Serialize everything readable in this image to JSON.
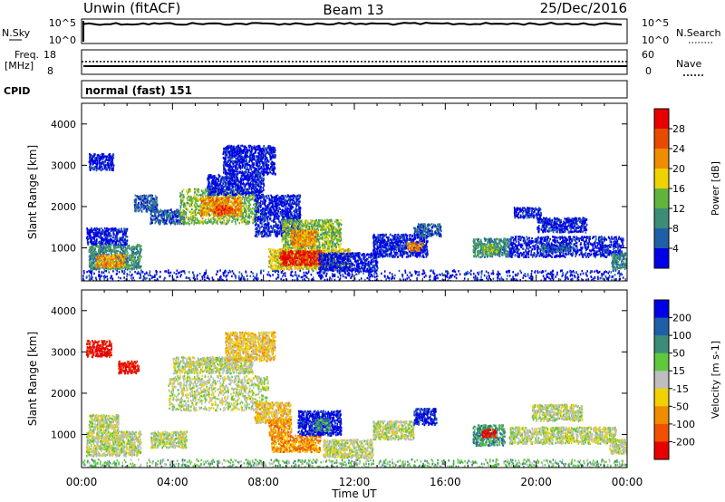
{
  "header": {
    "station": "Unwin (fitACF)",
    "beam": "Beam 13",
    "date": "25/Dec/2016"
  },
  "status_panels": {
    "nsky_label": "N.Sky",
    "nsearch_label": "N.Search",
    "noise_ticks_left": [
      "10^5",
      "10^0"
    ],
    "noise_ticks_right": [
      "10^5",
      "10^0"
    ],
    "freq_label": "Freq.",
    "freq_unit": "[MHz]",
    "freq_ticks": [
      "18",
      "8"
    ],
    "nave_label": "Nave",
    "nave_ticks": [
      "60",
      "0"
    ],
    "cpid_label": "CPID",
    "cpid_value": "normal (fast) 151"
  },
  "colors": {
    "power": [
      "#0000e6",
      "#1f5fa8",
      "#3c8c78",
      "#5fb43c",
      "#f0d200",
      "#f08c00",
      "#e64b00",
      "#e60000"
    ],
    "velocity": [
      "#0000e6",
      "#1f5fa8",
      "#3c8c78",
      "#5fc83c",
      "#bebebe",
      "#f0d200",
      "#f08c00",
      "#f05000",
      "#e60000"
    ]
  },
  "chart_data": [
    {
      "type": "heatmap",
      "name": "power",
      "ylabel": "Slant Range [km]",
      "xlabel": "",
      "y_ticks": [
        "1000",
        "2000",
        "3000",
        "4000"
      ],
      "ylim": [
        200,
        4500
      ],
      "x_ticks": [
        "00:00",
        "04:00",
        "08:00",
        "12:00",
        "16:00",
        "20:00",
        "00:00"
      ],
      "colorbar_label": "Power [dB]",
      "colorbar_ticks": [
        "4",
        "8",
        "12",
        "16",
        "20",
        "24",
        "28"
      ],
      "regions": [
        {
          "t0": 0.0,
          "t1": 24.0,
          "r0": 200,
          "r1": 480,
          "level": 1
        },
        {
          "t0": 0.3,
          "t1": 2.6,
          "r0": 500,
          "r1": 1100,
          "level": 3
        },
        {
          "t0": 0.6,
          "t1": 1.9,
          "r0": 550,
          "r1": 850,
          "level": 6
        },
        {
          "t0": 0.2,
          "t1": 2.0,
          "r0": 1100,
          "r1": 1500,
          "level": 1
        },
        {
          "t0": 0.3,
          "t1": 1.4,
          "r0": 2900,
          "r1": 3300,
          "level": 1
        },
        {
          "t0": 2.3,
          "t1": 3.3,
          "r0": 1900,
          "r1": 2300,
          "level": 2
        },
        {
          "t0": 3.0,
          "t1": 4.5,
          "r0": 1600,
          "r1": 1950,
          "level": 2
        },
        {
          "t0": 4.3,
          "t1": 7.8,
          "r0": 1600,
          "r1": 2450,
          "level": 4
        },
        {
          "t0": 5.2,
          "t1": 7.0,
          "r0": 1800,
          "r1": 2250,
          "level": 6
        },
        {
          "t0": 5.8,
          "t1": 6.6,
          "r0": 1850,
          "r1": 2050,
          "level": 7
        },
        {
          "t0": 5.5,
          "t1": 8.0,
          "r0": 2300,
          "r1": 2800,
          "level": 1
        },
        {
          "t0": 6.2,
          "t1": 8.5,
          "r0": 2800,
          "r1": 3500,
          "level": 1
        },
        {
          "t0": 7.6,
          "t1": 9.6,
          "r0": 1300,
          "r1": 2300,
          "level": 1
        },
        {
          "t0": 8.8,
          "t1": 11.4,
          "r0": 1000,
          "r1": 1700,
          "level": 4
        },
        {
          "t0": 9.2,
          "t1": 10.3,
          "r0": 1050,
          "r1": 1450,
          "level": 6
        },
        {
          "t0": 8.2,
          "t1": 11.8,
          "r0": 500,
          "r1": 1000,
          "level": 5
        },
        {
          "t0": 8.7,
          "t1": 10.6,
          "r0": 600,
          "r1": 950,
          "level": 8
        },
        {
          "t0": 10.4,
          "t1": 13.0,
          "r0": 450,
          "r1": 900,
          "level": 1
        },
        {
          "t0": 12.8,
          "t1": 15.2,
          "r0": 800,
          "r1": 1350,
          "level": 1
        },
        {
          "t0": 14.3,
          "t1": 15.0,
          "r0": 950,
          "r1": 1150,
          "level": 6
        },
        {
          "t0": 14.6,
          "t1": 15.8,
          "r0": 1300,
          "r1": 1600,
          "level": 2
        },
        {
          "t0": 17.2,
          "t1": 18.8,
          "r0": 800,
          "r1": 1250,
          "level": 3
        },
        {
          "t0": 17.6,
          "t1": 18.3,
          "r0": 900,
          "r1": 1100,
          "level": 4
        },
        {
          "t0": 18.8,
          "t1": 23.8,
          "r0": 800,
          "r1": 1300,
          "level": 1
        },
        {
          "t0": 20.2,
          "t1": 21.5,
          "r0": 900,
          "r1": 1100,
          "level": 2
        },
        {
          "t0": 20.0,
          "t1": 22.2,
          "r0": 1400,
          "r1": 1750,
          "level": 1
        },
        {
          "t0": 19.0,
          "t1": 20.2,
          "r0": 1750,
          "r1": 2000,
          "level": 1
        },
        {
          "t0": 23.3,
          "t1": 24.0,
          "r0": 500,
          "r1": 900,
          "level": 3
        }
      ]
    },
    {
      "type": "heatmap",
      "name": "velocity",
      "ylabel": "Slant Range [km]",
      "xlabel": "Time UT",
      "y_ticks": [
        "1000",
        "2000",
        "3000",
        "4000"
      ],
      "ylim": [
        200,
        4500
      ],
      "x_ticks": [
        "00:00",
        "04:00",
        "08:00",
        "12:00",
        "16:00",
        "20:00",
        "00:00"
      ],
      "colorbar_label": "Velocity [m s-1]",
      "colorbar_ticks": [
        "200",
        "100",
        "50",
        "15",
        "-15",
        "-50",
        "-100",
        "-200"
      ],
      "regions": [
        {
          "t0": 0.0,
          "t1": 24.0,
          "r0": 200,
          "r1": 420,
          "level": 4
        },
        {
          "t0": 0.2,
          "t1": 2.6,
          "r0": 500,
          "r1": 1100,
          "level": 5
        },
        {
          "t0": 0.3,
          "t1": 1.6,
          "r0": 1100,
          "r1": 1500,
          "level": 5
        },
        {
          "t0": 0.2,
          "t1": 1.3,
          "r0": 2900,
          "r1": 3300,
          "level": 9
        },
        {
          "t0": 1.6,
          "t1": 2.5,
          "r0": 2500,
          "r1": 2800,
          "level": 9
        },
        {
          "t0": 3.0,
          "t1": 4.6,
          "r0": 700,
          "r1": 1100,
          "level": 5
        },
        {
          "t0": 3.8,
          "t1": 8.2,
          "r0": 1600,
          "r1": 2450,
          "level": 5
        },
        {
          "t0": 4.0,
          "t1": 7.5,
          "r0": 2500,
          "r1": 2900,
          "level": 5
        },
        {
          "t0": 6.3,
          "t1": 8.5,
          "r0": 2800,
          "r1": 3500,
          "level": 6
        },
        {
          "t0": 7.6,
          "t1": 9.2,
          "r0": 1300,
          "r1": 1800,
          "level": 6
        },
        {
          "t0": 8.3,
          "t1": 10.5,
          "r0": 600,
          "r1": 1000,
          "level": 7
        },
        {
          "t0": 8.2,
          "t1": 9.2,
          "r0": 1000,
          "r1": 1400,
          "level": 7
        },
        {
          "t0": 9.5,
          "t1": 11.4,
          "r0": 1000,
          "r1": 1600,
          "level": 1
        },
        {
          "t0": 10.2,
          "t1": 10.9,
          "r0": 1100,
          "r1": 1400,
          "level": 3
        },
        {
          "t0": 10.6,
          "t1": 12.8,
          "r0": 450,
          "r1": 900,
          "level": 5
        },
        {
          "t0": 12.8,
          "t1": 14.6,
          "r0": 900,
          "r1": 1350,
          "level": 5
        },
        {
          "t0": 14.6,
          "t1": 15.6,
          "r0": 1250,
          "r1": 1650,
          "level": 1
        },
        {
          "t0": 17.2,
          "t1": 18.6,
          "r0": 750,
          "r1": 1250,
          "level": 3
        },
        {
          "t0": 17.6,
          "t1": 18.2,
          "r0": 950,
          "r1": 1150,
          "level": 9
        },
        {
          "t0": 18.8,
          "t1": 23.5,
          "r0": 800,
          "r1": 1200,
          "level": 5
        },
        {
          "t0": 19.8,
          "t1": 22.0,
          "r0": 1350,
          "r1": 1750,
          "level": 5
        },
        {
          "t0": 23.2,
          "t1": 24.0,
          "r0": 550,
          "r1": 900,
          "level": 5
        }
      ]
    }
  ]
}
